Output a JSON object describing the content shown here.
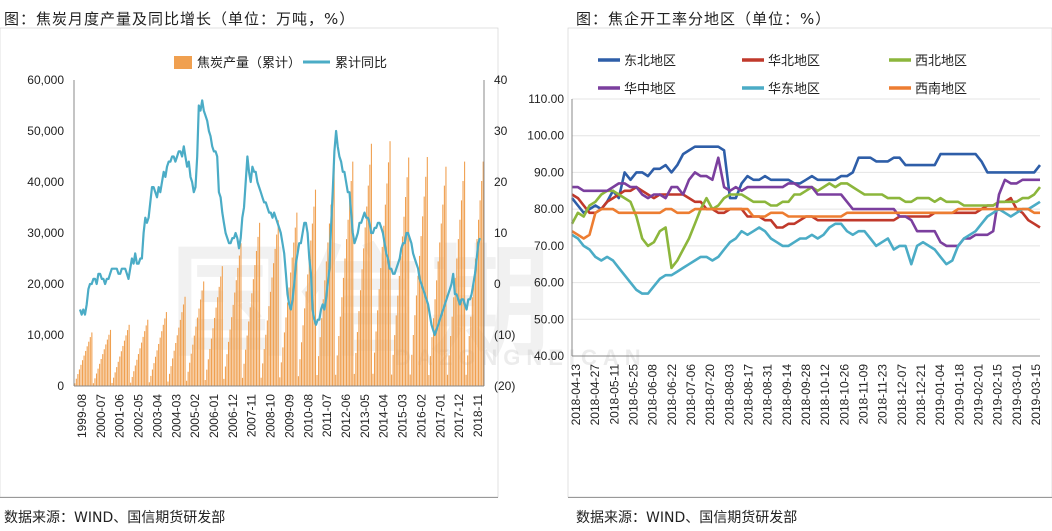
{
  "left_title": "图：焦炭月度产量及同比增长（单位：万吨，%）",
  "right_title": "图：焦企开工率分地区（单位：%）",
  "left_source": "数据来源：WIND、国信期货研发部",
  "right_source": "数据来源：WIND、国信期货研发部",
  "chart_data": [
    {
      "type": "bar",
      "title": "焦炭月度产量及同比增长",
      "legend_position": "top",
      "y_left_ticks": [
        "60,000",
        "50,000",
        "40,000",
        "30,000",
        "20,000",
        "10,000",
        "0"
      ],
      "y_left_lim": [
        0,
        60000
      ],
      "y_right_ticks": [
        "40",
        "30",
        "20",
        "10",
        "0",
        "(10)",
        "(20)"
      ],
      "y_right_lim": [
        -20,
        40
      ],
      "x_ticks": [
        "1999-08",
        "2000-07",
        "2001-06",
        "2002-05",
        "2003-04",
        "2004-03",
        "2005-02",
        "2006-01",
        "2006-12",
        "2007-11",
        "2008-10",
        "2009-09",
        "2010-08",
        "2011-07",
        "2012-06",
        "2013-05",
        "2014-04",
        "2015-03",
        "2016-02",
        "2017-01",
        "2017-12",
        "2018-11"
      ],
      "series": [
        {
          "name": "焦炭产量（累计）",
          "kind": "bar",
          "color": "#f0a050",
          "annual_totals": [
            10500,
            11000,
            12000,
            13000,
            14500,
            17500,
            20500,
            23500,
            28000,
            32000,
            32500,
            34000,
            38500,
            43000,
            44000,
            47500,
            48000,
            44800,
            44900,
            43000,
            44000,
            44000
          ],
          "start_fraction": 0.05
        },
        {
          "name": "累计同比",
          "kind": "line",
          "color": "#4bacc6",
          "values": [
            -5,
            -6,
            -5,
            -6,
            -4,
            -1,
            0,
            0,
            1,
            1,
            0,
            2,
            2,
            1,
            1,
            0,
            1,
            1,
            2,
            3,
            3,
            3,
            3,
            2,
            2,
            3,
            3,
            3,
            2,
            1,
            3,
            5,
            4,
            6,
            4,
            4,
            5,
            5,
            10,
            13,
            12,
            13,
            16,
            19,
            19,
            18,
            17,
            19,
            18,
            20,
            22,
            21,
            23,
            24,
            24,
            25,
            25,
            24,
            25,
            26,
            26,
            25,
            27,
            25,
            23,
            24,
            21,
            20,
            18,
            19,
            25,
            35,
            34,
            36,
            34,
            33,
            32,
            30,
            29,
            27,
            26,
            26,
            25,
            18,
            17,
            14,
            12,
            10,
            9,
            8,
            8,
            9,
            9,
            10,
            9,
            7,
            9,
            13,
            15,
            20,
            25,
            22,
            20,
            23,
            22,
            22,
            20,
            19,
            18,
            17,
            16,
            16,
            15,
            14,
            14,
            13,
            14,
            13,
            12,
            11,
            10,
            8,
            6,
            2,
            -2,
            -4,
            -5,
            -3,
            0,
            4,
            6,
            8,
            8,
            10,
            12,
            12,
            10,
            5,
            2,
            -5,
            -7,
            -8,
            -7,
            -7,
            -5,
            -4,
            -5,
            -3,
            0,
            3,
            11,
            18,
            26,
            30,
            27,
            25,
            24,
            22,
            22,
            20,
            18,
            18,
            14,
            10,
            8,
            9,
            10,
            12,
            12,
            13,
            14,
            13,
            13,
            12,
            10,
            10,
            11,
            11,
            12,
            12,
            11,
            10,
            8,
            6,
            5,
            3,
            3,
            2,
            2,
            3,
            4,
            5,
            7,
            8,
            8,
            10,
            10,
            9,
            8,
            6,
            5,
            4,
            3,
            1,
            0,
            -1,
            -2,
            -3,
            -4,
            -6,
            -8,
            -9,
            -10,
            -9,
            -8,
            -7,
            -6,
            -5,
            -4,
            -3,
            -2,
            -1,
            0,
            2,
            -2,
            -2,
            -3,
            -4,
            -3,
            -3,
            -4,
            -5,
            -3,
            -3,
            -2,
            0,
            2,
            5,
            8,
            9
          ]
        }
      ]
    },
    {
      "type": "line",
      "title": "焦企开工率分地区",
      "legend_position": "top",
      "ylim": [
        40,
        110
      ],
      "y_ticks": [
        "110.00",
        "100.00",
        "90.00",
        "80.00",
        "70.00",
        "60.00",
        "50.00",
        "40.00"
      ],
      "x_ticks": [
        "2018-04-13",
        "2018-04-27",
        "2018-05-11",
        "2018-05-25",
        "2018-06-08",
        "2018-06-22",
        "2018-07-06",
        "2018-07-20",
        "2018-08-03",
        "2018-08-17",
        "2018-08-31",
        "2018-09-14",
        "2018-09-28",
        "2018-10-12",
        "2018-10-26",
        "2018-11-09",
        "2018-11-23",
        "2018-12-07",
        "2018-12-21",
        "2019-01-04",
        "2019-01-18",
        "2019-02-01",
        "2019-02-15",
        "2019-03-01",
        "2019-03-15"
      ],
      "series": [
        {
          "name": "东北地区",
          "color": "#2e5ea8",
          "values": [
            83,
            81,
            79,
            80,
            81,
            80,
            82,
            85,
            83,
            90,
            88,
            90,
            90,
            89,
            91,
            91,
            92,
            90,
            92,
            95,
            96,
            97,
            97,
            97,
            97,
            97,
            96,
            83,
            83,
            87,
            89,
            88,
            88,
            89,
            88,
            88,
            88,
            88,
            87,
            87,
            88,
            89,
            88,
            88,
            88,
            88,
            89,
            89,
            90,
            94,
            94,
            94,
            93,
            93,
            93,
            94,
            94,
            92,
            92,
            92,
            92,
            92,
            92,
            95,
            95,
            95,
            95,
            95,
            95,
            95,
            93,
            90,
            90,
            90,
            90,
            90,
            90,
            90,
            90,
            90,
            92
          ]
        },
        {
          "name": "华北地区",
          "color": "#c0392b",
          "values": [
            84,
            83,
            81,
            79,
            79,
            80,
            82,
            83,
            84,
            85,
            85,
            86,
            85,
            84,
            83,
            84,
            84,
            84,
            84,
            84,
            83,
            82,
            82,
            80,
            80,
            79,
            79,
            80,
            80,
            80,
            78,
            78,
            78,
            77,
            77,
            75,
            75,
            76,
            76,
            77,
            78,
            78,
            77,
            77,
            77,
            77,
            77,
            77,
            77,
            77,
            77,
            77,
            77,
            77,
            77,
            77,
            78,
            78,
            78,
            78,
            78,
            78,
            79,
            79,
            79,
            79,
            79,
            79,
            79,
            79,
            80,
            81,
            81,
            82,
            82,
            83,
            80,
            79,
            77,
            76,
            75
          ]
        },
        {
          "name": "西北地区",
          "color": "#8cb63c",
          "values": [
            76,
            79,
            78,
            81,
            82,
            84,
            85,
            85,
            84,
            83,
            82,
            78,
            72,
            70,
            71,
            74,
            75,
            64,
            66,
            69,
            72,
            76,
            80,
            83,
            80,
            81,
            83,
            84,
            84,
            84,
            83,
            82,
            82,
            82,
            81,
            81,
            82,
            82,
            84,
            84,
            85,
            86,
            85,
            86,
            87,
            86,
            87,
            87,
            86,
            85,
            84,
            84,
            84,
            84,
            83,
            83,
            83,
            82,
            82,
            83,
            83,
            83,
            82,
            83,
            82,
            82,
            82,
            81,
            81,
            81,
            81,
            81,
            81,
            82,
            82,
            82,
            82,
            83,
            83,
            84,
            86
          ]
        },
        {
          "name": "华中地区",
          "color": "#7b3f9e",
          "values": [
            86,
            86,
            85,
            85,
            85,
            85,
            85,
            86,
            87,
            87,
            86,
            86,
            84,
            83,
            84,
            84,
            83,
            86,
            86,
            84,
            88,
            90,
            89,
            89,
            88,
            94,
            86,
            85,
            86,
            85,
            86,
            86,
            86,
            86,
            86,
            86,
            86,
            87,
            87,
            86,
            86,
            86,
            84,
            84,
            84,
            84,
            84,
            82,
            80,
            80,
            80,
            80,
            80,
            80,
            80,
            80,
            78,
            78,
            77,
            74,
            74,
            74,
            74,
            71,
            70,
            70,
            70,
            72,
            72,
            73,
            73,
            73,
            74,
            84,
            88,
            87,
            87,
            88,
            88,
            88,
            88
          ]
        },
        {
          "name": "华东地区",
          "color": "#4bacc6",
          "values": [
            73,
            72,
            70,
            69,
            67,
            66,
            67,
            66,
            64,
            62,
            60,
            58,
            57,
            57,
            59,
            61,
            62,
            62,
            63,
            64,
            65,
            66,
            67,
            67,
            66,
            67,
            69,
            71,
            72,
            74,
            73,
            74,
            75,
            74,
            72,
            71,
            70,
            70,
            71,
            72,
            72,
            73,
            72,
            73,
            75,
            76,
            76,
            74,
            73,
            74,
            74,
            72,
            70,
            71,
            72,
            69,
            70,
            70,
            65,
            70,
            71,
            70,
            69,
            67,
            65,
            66,
            70,
            72,
            73,
            74,
            76,
            78,
            79,
            80,
            79,
            78,
            79,
            80,
            80,
            81,
            82
          ]
        },
        {
          "name": "西南地区",
          "color": "#ed7d31",
          "values": [
            74,
            73,
            72,
            73,
            79,
            80,
            80,
            80,
            79,
            79,
            79,
            79,
            79,
            79,
            79,
            79,
            80,
            80,
            79,
            79,
            79,
            80,
            80,
            80,
            80,
            80,
            80,
            80,
            80,
            80,
            80,
            78,
            78,
            78,
            79,
            79,
            79,
            78,
            78,
            78,
            78,
            78,
            78,
            78,
            78,
            78,
            78,
            79,
            79,
            79,
            79,
            79,
            79,
            79,
            79,
            79,
            79,
            79,
            79,
            79,
            79,
            79,
            79,
            79,
            79,
            79,
            80,
            80,
            80,
            80,
            80,
            80,
            80,
            80,
            80,
            80,
            80,
            80,
            80,
            79,
            79
          ]
        }
      ]
    }
  ]
}
